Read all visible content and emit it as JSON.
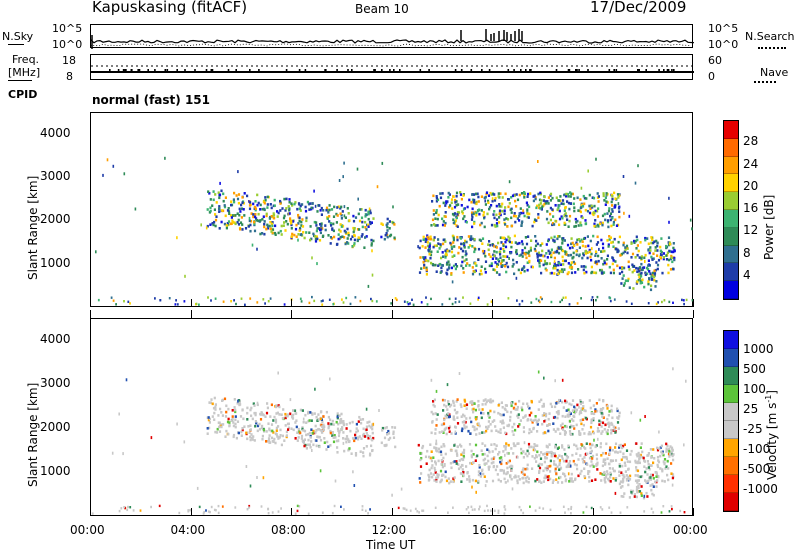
{
  "header": {
    "station": "Kapuskasing (fitACF)",
    "beam": "Beam 10",
    "date": "17/Dec/2009"
  },
  "strip1": {
    "left_label": "N.Sky",
    "left_ticks": [
      "10^5",
      "10^0"
    ],
    "right_ticks": [
      "10^5",
      "10^0"
    ],
    "right_label": "N.Search"
  },
  "strip2": {
    "left_label_line1": "Freq.",
    "left_label_line2": "[MHz]",
    "left_ticks": [
      "18",
      "8"
    ],
    "right_ticks": [
      "60",
      "0"
    ],
    "right_label": "Nave",
    "cpid_label": "CPID",
    "cpid_value": "normal (fast) 151"
  },
  "chart_data": [
    {
      "type": "heatmap",
      "title": "",
      "ylabel": "Slant Range [km]",
      "xlabel": "",
      "ylim": [
        0,
        4500
      ],
      "y_ticks": [
        "4000",
        "3000",
        "2000",
        "1000"
      ],
      "x_tick_labels": [
        "00:00",
        "04:00",
        "08:00",
        "12:00",
        "16:00",
        "20:00",
        "00:00"
      ],
      "colorbar": {
        "label": "Power [dB]",
        "ticks": [
          "28",
          "24",
          "20",
          "16",
          "12",
          "8",
          "4"
        ],
        "colors": [
          "#e60000",
          "#ff6a00",
          "#ff9e00",
          "#ffd200",
          "#9acd32",
          "#3cb371",
          "#2e8b57",
          "#2f6f8f",
          "#1e3ca8",
          "#0000e0"
        ]
      },
      "echo_regions": [
        {
          "t_start": 4.6,
          "t_end": 11.2,
          "r_center": 2350,
          "r_width": 450
        },
        {
          "t_start": 11.5,
          "t_end": 12.1,
          "r_center": 1850,
          "r_width": 250
        },
        {
          "t_start": 13.0,
          "t_end": 23.2,
          "r_center": 1250,
          "r_width": 450
        },
        {
          "t_start": 13.5,
          "t_end": 21.0,
          "r_center": 2300,
          "r_width": 400
        },
        {
          "t_start": 21.0,
          "t_end": 22.5,
          "r_center": 700,
          "r_width": 250
        }
      ]
    },
    {
      "type": "heatmap",
      "title": "",
      "ylabel": "Slant Range [km]",
      "xlabel": "Time UT",
      "ylim": [
        0,
        4500
      ],
      "y_ticks": [
        "4000",
        "3000",
        "2000",
        "1000"
      ],
      "x_tick_labels": [
        "00:00",
        "04:00",
        "08:00",
        "12:00",
        "16:00",
        "20:00",
        "00:00"
      ],
      "colorbar": {
        "label": "Velocity [m s^-1]",
        "ticks": [
          "1000",
          "500",
          "100",
          "25",
          "-25",
          "-100",
          "-500",
          "-1000"
        ],
        "colors": [
          "#1010e0",
          "#2050b0",
          "#2e8b57",
          "#5cc43a",
          "#c8c8c8",
          "#c8c8c8",
          "#ffa500",
          "#ff7000",
          "#ff3000",
          "#e00000"
        ]
      },
      "echo_regions": [
        {
          "t_start": 4.6,
          "t_end": 11.2,
          "r_center": 2350,
          "r_width": 450
        },
        {
          "t_start": 11.5,
          "t_end": 12.1,
          "r_center": 1850,
          "r_width": 250
        },
        {
          "t_start": 13.0,
          "t_end": 23.2,
          "r_center": 1250,
          "r_width": 450
        },
        {
          "t_start": 13.5,
          "t_end": 21.0,
          "r_center": 2300,
          "r_width": 400
        },
        {
          "t_start": 21.0,
          "t_end": 22.5,
          "r_center": 700,
          "r_width": 250
        }
      ]
    }
  ]
}
